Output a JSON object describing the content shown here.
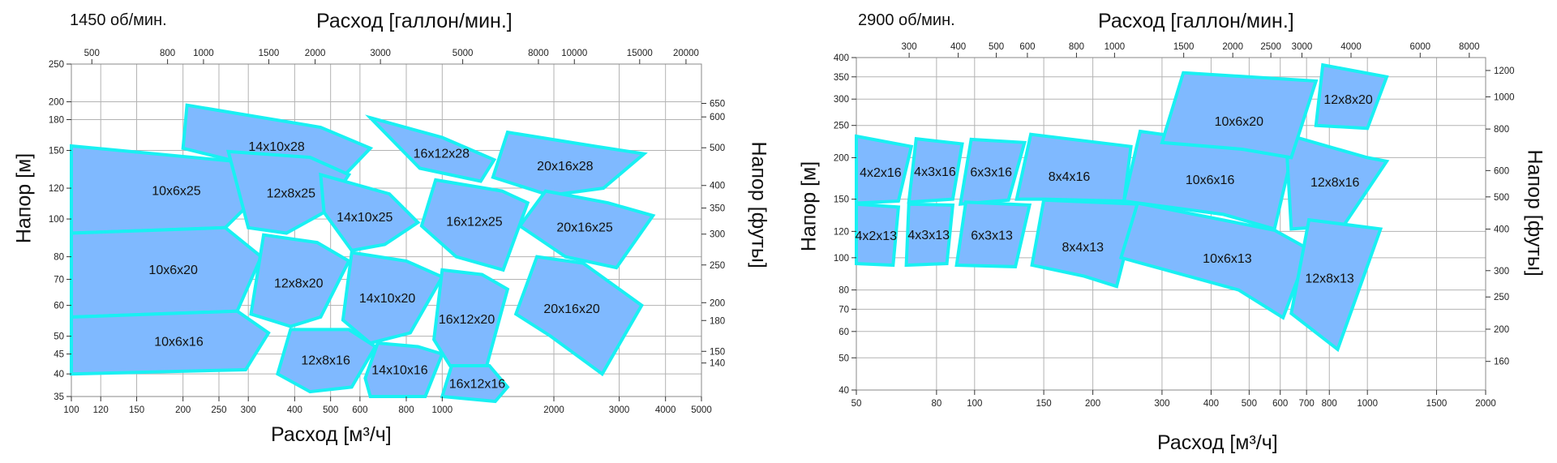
{
  "chart_data": [
    {
      "type": "area",
      "speed_label": "1450 об/мин.",
      "x_top_label": "Расход [галлон/мин.]",
      "x_bottom_label": "Расход [м³/ч]",
      "y_left_label": "Напор [м]",
      "y_right_label": "Напор [футы]",
      "x_scale": "log",
      "y_scale": "log",
      "xlim": [
        100,
        5000
      ],
      "ylim": [
        35,
        250
      ],
      "x_ticks": [
        100,
        120,
        150,
        200,
        250,
        300,
        400,
        500,
        600,
        800,
        1000,
        2000,
        3000,
        4000,
        5000
      ],
      "x_ticks_top_gpm": [
        500,
        800,
        1000,
        1500,
        2000,
        3000,
        5000,
        8000,
        10000,
        15000,
        20000
      ],
      "y_ticks": [
        35,
        40,
        45,
        50,
        60,
        70,
        80,
        100,
        120,
        150,
        180,
        200,
        250
      ],
      "y_ticks_right_ft": [
        140,
        150,
        180,
        200,
        250,
        300,
        350,
        400,
        500,
        600,
        650
      ],
      "grid": true,
      "regions": [
        {
          "name": "10x6x25",
          "points": [
            [
              100,
              154
            ],
            [
              290,
              140
            ],
            [
              345,
              124
            ],
            [
              260,
              95
            ],
            [
              100,
              92
            ]
          ]
        },
        {
          "name": "10x6x20",
          "points": [
            [
              100,
              92
            ],
            [
              260,
              95
            ],
            [
              325,
              80
            ],
            [
              280,
              58
            ],
            [
              100,
              56
            ]
          ]
        },
        {
          "name": "10x6x16",
          "points": [
            [
              100,
              56
            ],
            [
              280,
              58
            ],
            [
              340,
              51
            ],
            [
              295,
              41
            ],
            [
              100,
              40
            ]
          ]
        },
        {
          "name": "14x10x28",
          "points": [
            [
              205,
              196
            ],
            [
              470,
              172
            ],
            [
              640,
              152
            ],
            [
              530,
              126
            ],
            [
              320,
              136
            ],
            [
              200,
              152
            ]
          ]
        },
        {
          "name": "12x8x25",
          "points": [
            [
              265,
              149
            ],
            [
              440,
              144
            ],
            [
              560,
              130
            ],
            [
              480,
              104
            ],
            [
              380,
              92
            ],
            [
              300,
              95
            ]
          ]
        },
        {
          "name": "14x10x25",
          "points": [
            [
              470,
              130
            ],
            [
              720,
              116
            ],
            [
              860,
              98
            ],
            [
              700,
              86
            ],
            [
              570,
              83
            ],
            [
              480,
              104
            ]
          ]
        },
        {
          "name": "16x12x28",
          "points": [
            [
              640,
              182
            ],
            [
              1000,
              162
            ],
            [
              1380,
              142
            ],
            [
              1270,
              125
            ],
            [
              870,
              135
            ]
          ]
        },
        {
          "name": "16x12x25",
          "points": [
            [
              960,
              126
            ],
            [
              1450,
              118
            ],
            [
              1700,
              110
            ],
            [
              1460,
              74
            ],
            [
              1090,
              80
            ],
            [
              880,
              96
            ]
          ]
        },
        {
          "name": "12x8x20",
          "points": [
            [
              330,
              91
            ],
            [
              460,
              87
            ],
            [
              560,
              78
            ],
            [
              470,
              56
            ],
            [
              390,
              53
            ],
            [
              305,
              57
            ]
          ]
        },
        {
          "name": "14x10x20",
          "points": [
            [
              570,
              82
            ],
            [
              800,
              78
            ],
            [
              1000,
              71
            ],
            [
              820,
              51
            ],
            [
              640,
              48
            ],
            [
              540,
              55
            ]
          ]
        },
        {
          "name": "16x12x20",
          "points": [
            [
              1000,
              74
            ],
            [
              1280,
              72
            ],
            [
              1500,
              66
            ],
            [
              1300,
              40
            ],
            [
              1050,
              42
            ],
            [
              950,
              49
            ]
          ]
        },
        {
          "name": "12x8x16",
          "points": [
            [
              390,
              52
            ],
            [
              560,
              52
            ],
            [
              660,
              47
            ],
            [
              570,
              37
            ],
            [
              440,
              36
            ],
            [
              360,
              40
            ]
          ]
        },
        {
          "name": "14x10x16",
          "points": [
            [
              670,
              48
            ],
            [
              860,
              47
            ],
            [
              1000,
              45
            ],
            [
              900,
              35
            ],
            [
              640,
              35
            ],
            [
              620,
              39
            ]
          ]
        },
        {
          "name": "16x12x16",
          "points": [
            [
              1060,
              42
            ],
            [
              1340,
              42
            ],
            [
              1500,
              37
            ],
            [
              1390,
              34
            ],
            [
              1000,
              35
            ]
          ]
        },
        {
          "name": "16x12x28 / 20x16x28",
          "points": [
            [
              1500,
              167
            ],
            [
              2550,
              154
            ],
            [
              3500,
              147
            ],
            [
              2720,
              120
            ],
            [
              1950,
              115
            ],
            [
              1370,
              128
            ]
          ]
        },
        {
          "name": "20x16x25",
          "points": [
            [
              1900,
              118
            ],
            [
              2800,
              110
            ],
            [
              3700,
              102
            ],
            [
              2950,
              75
            ],
            [
              2150,
              80
            ],
            [
              1620,
              96
            ]
          ]
        },
        {
          "name": "20x16x20",
          "points": [
            [
              1800,
              80
            ],
            [
              2400,
              77
            ],
            [
              3450,
              60
            ],
            [
              2700,
              40
            ],
            [
              1960,
              50
            ],
            [
              1580,
              57
            ]
          ]
        }
      ]
    },
    {
      "type": "area",
      "speed_label": "2900 об/мин.",
      "x_top_label": "Расход [галлон/мин.]",
      "x_bottom_label": "Расход [м³/ч]",
      "y_left_label": "Напор [м]",
      "y_right_label": "Напор [футы]",
      "x_scale": "log",
      "y_scale": "log",
      "xlim": [
        50,
        2000
      ],
      "ylim": [
        40,
        400
      ],
      "x_ticks": [
        50,
        80,
        100,
        150,
        200,
        300,
        400,
        500,
        600,
        700,
        800,
        1000,
        1500,
        2000
      ],
      "x_ticks_top_gpm": [
        300,
        400,
        500,
        600,
        800,
        1000,
        1500,
        2000,
        2500,
        3000,
        4000,
        6000,
        8000
      ],
      "y_ticks": [
        40,
        50,
        60,
        70,
        80,
        100,
        120,
        150,
        200,
        250,
        300,
        350,
        400
      ],
      "y_ticks_right_ft": [
        160,
        200,
        250,
        300,
        400,
        500,
        600,
        800,
        1000,
        1200
      ],
      "grid": true,
      "regions": [
        {
          "name": "4x2x16",
          "points": [
            [
              50,
              232
            ],
            [
              69,
              216
            ],
            [
              64,
              148
            ],
            [
              50,
              146
            ]
          ]
        },
        {
          "name": "4x3x16",
          "points": [
            [
              71,
              228
            ],
            [
              93,
              220
            ],
            [
              88,
              150
            ],
            [
              68,
              147
            ]
          ]
        },
        {
          "name": "6x3x16",
          "points": [
            [
              98,
              227
            ],
            [
              134,
              222
            ],
            [
              122,
              149
            ],
            [
              92,
              145
            ]
          ]
        },
        {
          "name": "8x4x16",
          "points": [
            [
              139,
              235
            ],
            [
              250,
              216
            ],
            [
              240,
              148
            ],
            [
              150,
              150
            ],
            [
              128,
              150
            ]
          ]
        },
        {
          "name": "10x6x16",
          "points": [
            [
              264,
              240
            ],
            [
              390,
              225
            ],
            [
              640,
              200
            ],
            [
              580,
              122
            ],
            [
              430,
              135
            ],
            [
              240,
              148
            ]
          ]
        },
        {
          "name": "12x8x16",
          "points": [
            [
              620,
              235
            ],
            [
              1000,
              200
            ],
            [
              1120,
              195
            ],
            [
              870,
              125
            ],
            [
              640,
              122
            ]
          ]
        },
        {
          "name": "10x6x20",
          "points": [
            [
              340,
              360
            ],
            [
              740,
              340
            ],
            [
              640,
              200
            ],
            [
              480,
              212
            ],
            [
              300,
              222
            ]
          ]
        },
        {
          "name": "12x8x20",
          "points": [
            [
              770,
              380
            ],
            [
              1120,
              350
            ],
            [
              1000,
              245
            ],
            [
              740,
              250
            ]
          ]
        },
        {
          "name": "4x2x13",
          "points": [
            [
              50,
              145
            ],
            [
              64,
              142
            ],
            [
              62,
              95
            ],
            [
              50,
              96
            ]
          ]
        },
        {
          "name": "4x3x13",
          "points": [
            [
              68,
              145
            ],
            [
              88,
              144
            ],
            [
              85,
              96
            ],
            [
              67,
              95
            ]
          ]
        },
        {
          "name": "6x3x13",
          "points": [
            [
              95,
              147
            ],
            [
              138,
              144
            ],
            [
              127,
              94
            ],
            [
              90,
              95
            ]
          ]
        },
        {
          "name": "8x4x13",
          "points": [
            [
              150,
              149
            ],
            [
              260,
              145
            ],
            [
              230,
              82
            ],
            [
              190,
              88
            ],
            [
              140,
              95
            ]
          ]
        },
        {
          "name": "10x6x13",
          "points": [
            [
              260,
              146
            ],
            [
              580,
              121
            ],
            [
              710,
              106
            ],
            [
              610,
              66
            ],
            [
              470,
              80
            ],
            [
              236,
              100
            ]
          ]
        },
        {
          "name": "12x8x13",
          "points": [
            [
              710,
              130
            ],
            [
              1080,
              122
            ],
            [
              840,
              53
            ],
            [
              640,
              68
            ]
          ]
        }
      ]
    }
  ]
}
